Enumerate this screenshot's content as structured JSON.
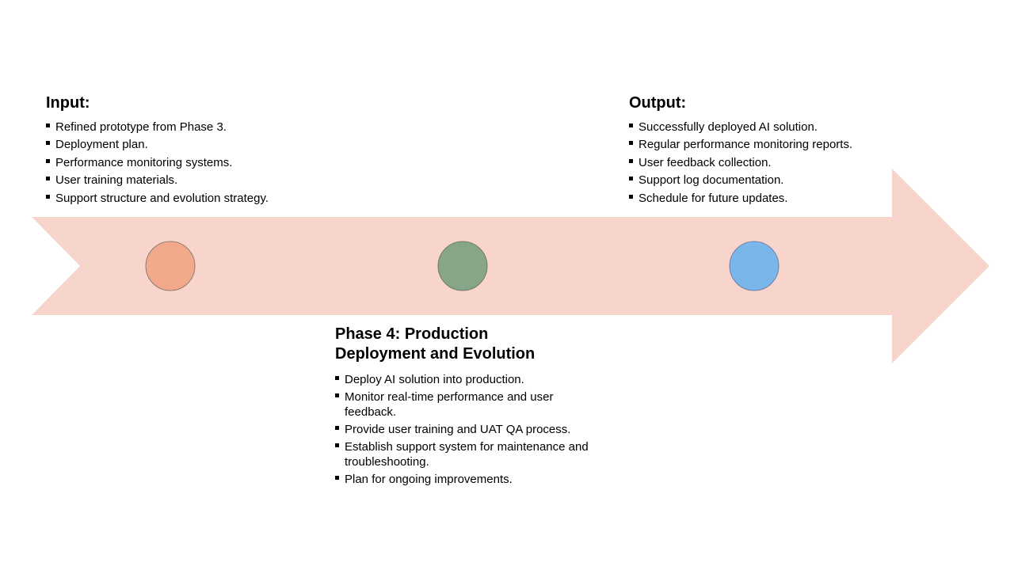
{
  "input": {
    "title": "Input:",
    "items": [
      "Refined prototype from Phase 3.",
      "Deployment plan.",
      "Performance monitoring systems.",
      "User training materials.",
      "Support structure and evolution strategy."
    ]
  },
  "output": {
    "title": "Output:",
    "items": [
      "Successfully deployed AI solution.",
      "Regular performance monitoring reports.",
      "User feedback collection.",
      "Support log documentation.",
      "Schedule for future updates."
    ]
  },
  "phase": {
    "title_line1": "Phase 4: Production",
    "title_line2": "Deployment and Evolution",
    "items": [
      "Deploy AI solution into production.",
      "Monitor real-time performance and user feedback.",
      "Provide user training and UAT QA process.",
      "Establish support system for maintenance and troubleshooting.",
      "Plan for ongoing improvements."
    ]
  },
  "colors": {
    "arrow_fill": "#f8d5cc",
    "circle_left": "#f2a88b",
    "circle_middle": "#88a587",
    "circle_right": "#7ab6ea"
  }
}
